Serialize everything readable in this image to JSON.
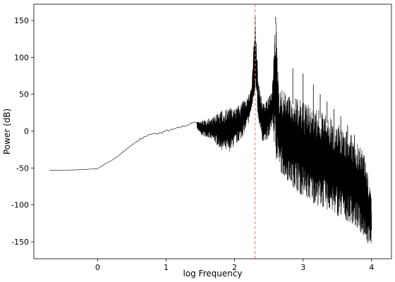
{
  "chart_data": {
    "type": "line",
    "title": "",
    "xlabel": "log Frequency",
    "ylabel": "Power (dB)",
    "xlim": [
      -0.93,
      4.29
    ],
    "ylim": [
      -173,
      172
    ],
    "xticks": [
      0,
      1,
      2,
      3,
      4
    ],
    "yticks": [
      150,
      100,
      50,
      0,
      -50,
      -100,
      -150
    ],
    "grid": false,
    "legend": "none",
    "series_color": "#000000",
    "marker_line": {
      "x": 2.3,
      "color": "#ff6666",
      "style": "dashed"
    },
    "series": [
      {
        "values_note": "approximate spectrum envelope",
        "x": [
          -0.7,
          -0.5,
          -0.3,
          -0.1,
          0.0,
          0.1,
          0.2,
          0.3,
          0.4,
          0.5,
          0.6,
          0.7,
          0.8,
          0.9,
          1.0,
          1.1,
          1.2,
          1.3,
          1.4,
          1.5,
          1.6,
          1.7,
          1.8,
          1.9,
          2.0,
          2.1,
          2.2,
          2.25,
          2.3,
          2.35,
          2.4,
          2.5,
          2.55,
          2.6,
          2.65,
          2.7,
          2.8,
          2.9,
          3.0,
          3.1,
          3.2,
          3.3,
          3.4,
          3.5,
          3.6,
          3.7,
          3.8,
          3.9,
          3.95,
          4.0
        ],
        "upper": [
          -53,
          -53,
          -52.5,
          -51.5,
          -51,
          -45,
          -40,
          -34,
          -26,
          -19,
          -12,
          -7,
          -4,
          -3,
          0,
          2,
          5,
          8,
          11,
          14,
          16,
          20,
          27,
          32,
          30,
          38,
          48,
          62,
          155,
          65,
          42,
          45,
          60,
          155,
          62,
          55,
          48,
          45,
          40,
          35,
          30,
          25,
          18,
          10,
          3,
          -5,
          -18,
          -30,
          -60,
          -90
        ],
        "lower": [
          -53,
          -53,
          -52.5,
          -51.5,
          -51,
          -45,
          -40,
          -34,
          -26,
          -19,
          -12,
          -7,
          -4,
          -3,
          0,
          2,
          5,
          8,
          11,
          -5,
          -8,
          -15,
          -25,
          -30,
          -20,
          -10,
          10,
          30,
          55,
          5,
          -15,
          -10,
          10,
          -40,
          -50,
          -60,
          -70,
          -80,
          -90,
          -95,
          -100,
          -105,
          -110,
          -115,
          -120,
          -125,
          -135,
          -145,
          -155,
          -158
        ],
        "spikes": [
          {
            "x": 2.3,
            "y": 155
          },
          {
            "x": 2.6,
            "y": 155
          },
          {
            "x": 2.85,
            "y": 85
          },
          {
            "x": 3.0,
            "y": 78
          },
          {
            "x": 3.15,
            "y": 63
          },
          {
            "x": 3.25,
            "y": 50
          },
          {
            "x": 3.35,
            "y": 40
          },
          {
            "x": 3.45,
            "y": 30
          },
          {
            "x": 3.55,
            "y": 20
          },
          {
            "x": 3.65,
            "y": 8
          },
          {
            "x": 3.75,
            "y": -5
          }
        ]
      }
    ]
  }
}
